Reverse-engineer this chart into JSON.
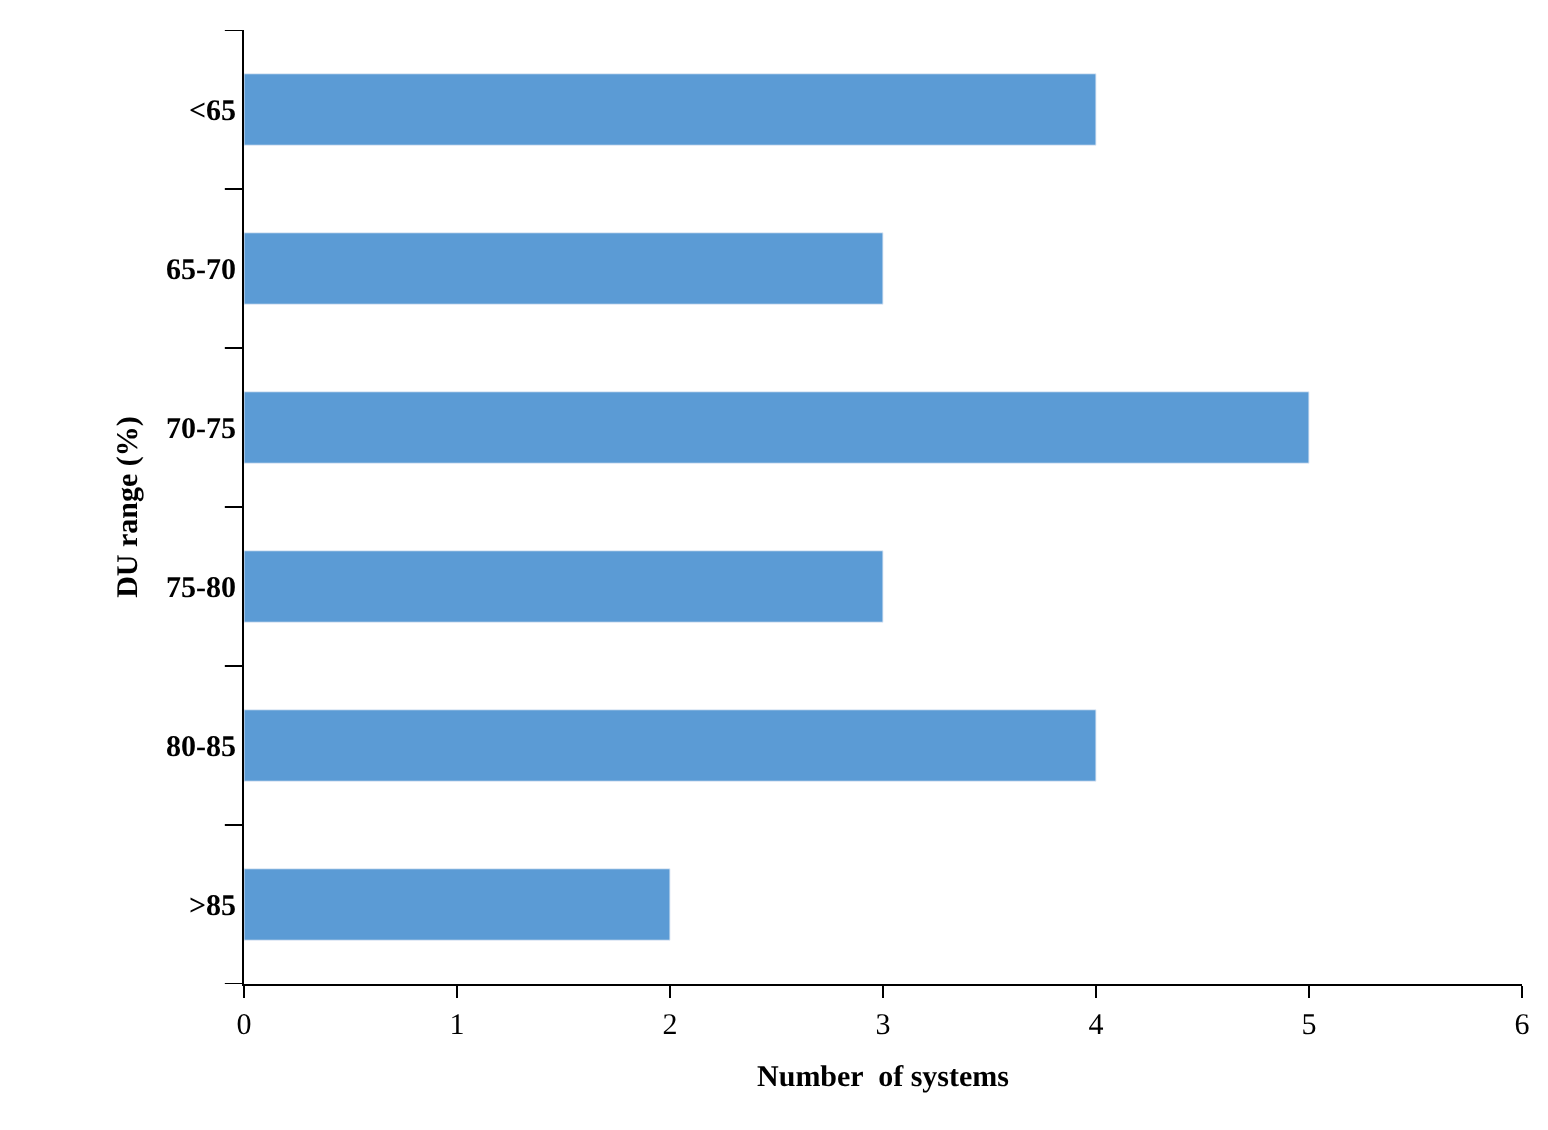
{
  "chart_data": {
    "type": "bar",
    "orientation": "horizontal",
    "xlabel": "Number  of systems",
    "ylabel": "DU range (%)",
    "categories": [
      "<65",
      "65-70",
      "70-75",
      "75-80",
      "80-85",
      ">85"
    ],
    "values": [
      4,
      3,
      5,
      3,
      4,
      2
    ],
    "color": "#5b9bd5",
    "xlim": [
      0,
      6
    ],
    "xticks": [
      0,
      1,
      2,
      3,
      4,
      5,
      6
    ]
  }
}
